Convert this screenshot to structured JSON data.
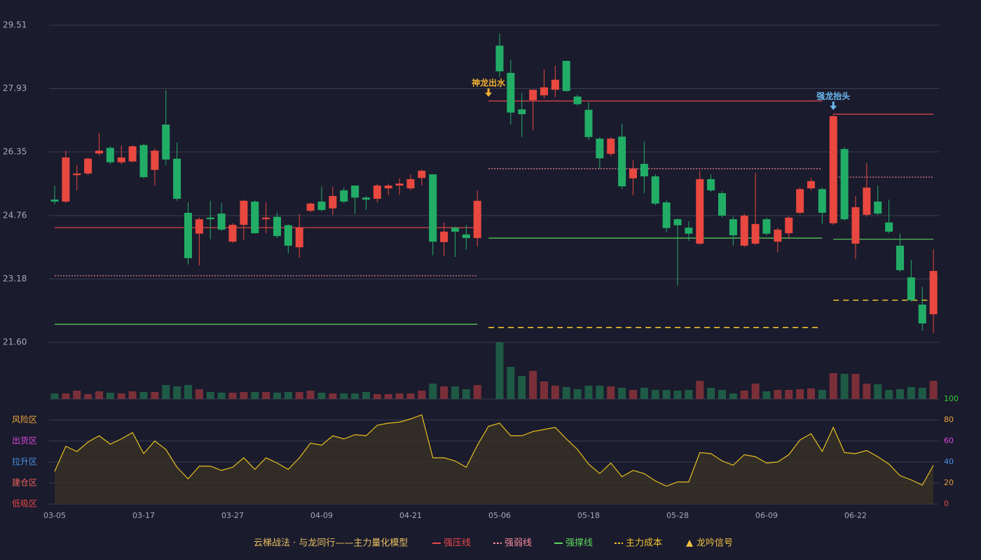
{
  "chart_data": {
    "type": "candlestick",
    "categories": [
      "03-05",
      null,
      null,
      null,
      null,
      null,
      null,
      null,
      "03-17",
      null,
      null,
      null,
      null,
      null,
      null,
      null,
      "03-27",
      null,
      null,
      null,
      null,
      null,
      null,
      null,
      "04-09",
      null,
      null,
      null,
      null,
      null,
      null,
      null,
      "04-21",
      null,
      null,
      null,
      null,
      null,
      null,
      null,
      "05-06",
      null,
      null,
      null,
      null,
      null,
      null,
      null,
      "05-18",
      null,
      null,
      null,
      null,
      null,
      null,
      null,
      "05-28",
      null,
      null,
      null,
      null,
      null,
      null,
      null,
      "06-09",
      null,
      null,
      null,
      null,
      null,
      null,
      null,
      "06-22",
      null,
      null,
      null,
      null,
      null,
      null,
      null
    ],
    "open": [
      25.16,
      25.11,
      25.77,
      25.81,
      26.31,
      26.45,
      26.09,
      26.11,
      26.52,
      25.9,
      27.03,
      26.18,
      24.83,
      24.31,
      24.71,
      24.81,
      24.11,
      24.53,
      25.11,
      24.67,
      24.73,
      24.52,
      23.97,
      24.88,
      25.11,
      24.94,
      25.39,
      25.51,
      25.21,
      25.18,
      25.44,
      25.51,
      25.44,
      25.7,
      25.79,
      24.1,
      24.46,
      24.29,
      24.2,
      null,
      29.0,
      28.32,
      27.41,
      27.64,
      27.76,
      27.9,
      28.62,
      27.73,
      27.4,
      26.68,
      26.3,
      26.73,
      25.69,
      26.05,
      25.74,
      25.09,
      24.67,
      24.46,
      24.06,
      25.67,
      25.32,
      24.67,
      24.01,
      24.06,
      24.67,
      24.11,
      24.32,
      24.83,
      25.44,
      25.42,
      24.57,
      26.42,
      24.06,
      24.78,
      25.11,
      24.59,
      24.01,
      23.22,
      22.54,
      22.3
    ],
    "high": [
      25.51,
      26.38,
      26.02,
      26.21,
      26.82,
      26.49,
      26.51,
      26.51,
      26.56,
      26.44,
      27.89,
      26.58,
      25.09,
      24.71,
      25.13,
      25.07,
      24.57,
      25.16,
      25.14,
      25.09,
      24.83,
      24.55,
      24.8,
      25.09,
      25.49,
      25.48,
      25.46,
      25.51,
      25.25,
      25.55,
      25.56,
      25.69,
      25.79,
      25.91,
      25.79,
      24.59,
      24.48,
      24.52,
      25.39,
      null,
      29.3,
      28.65,
      27.82,
      27.9,
      28.41,
      28.5,
      28.62,
      27.78,
      27.59,
      26.72,
      26.72,
      27.05,
      26.14,
      26.61,
      25.79,
      25.14,
      24.69,
      24.62,
      25.88,
      25.79,
      25.37,
      24.74,
      24.8,
      25.83,
      24.71,
      24.46,
      24.74,
      25.46,
      25.7,
      25.46,
      27.28,
      26.47,
      25.25,
      26.07,
      25.51,
      25.16,
      24.31,
      23.66,
      22.98,
      23.92
    ],
    "low": [
      25.04,
      25.07,
      25.39,
      25.77,
      26.26,
      26.04,
      26.04,
      26.09,
      25.69,
      25.51,
      26.02,
      25.13,
      23.54,
      23.52,
      24.17,
      24.38,
      24.08,
      24.15,
      24.31,
      24.32,
      24.2,
      23.82,
      23.71,
      24.85,
      24.87,
      24.78,
      25.07,
      24.8,
      24.9,
      25.09,
      25.27,
      25.28,
      25.39,
      25.51,
      23.77,
      23.75,
      23.73,
      23.91,
      23.99,
      null,
      28.22,
      27.03,
      26.72,
      26.89,
      27.68,
      27.71,
      27.85,
      27.5,
      26.65,
      25.93,
      26.24,
      25.42,
      25.27,
      25.32,
      25.02,
      24.34,
      23.01,
      24.13,
      24.03,
      25.35,
      24.71,
      24.01,
      23.97,
      24.03,
      24.27,
      23.84,
      24.18,
      24.8,
      25.39,
      24.55,
      24.53,
      24.64,
      23.68,
      24.73,
      24.78,
      24.32,
      23.36,
      22.61,
      21.88,
      21.83
    ],
    "close": [
      25.11,
      26.21,
      25.81,
      26.18,
      26.38,
      26.09,
      26.21,
      26.49,
      25.72,
      26.38,
      26.16,
      25.18,
      23.7,
      24.67,
      24.67,
      24.41,
      24.53,
      25.13,
      24.32,
      24.71,
      24.25,
      24.01,
      24.46,
      25.06,
      24.9,
      25.25,
      25.11,
      25.21,
      25.16,
      25.51,
      25.51,
      25.56,
      25.67,
      25.88,
      24.11,
      24.36,
      24.36,
      24.2,
      25.13,
      null,
      28.36,
      27.33,
      27.29,
      27.9,
      27.96,
      28.15,
      27.87,
      27.54,
      26.72,
      26.19,
      26.68,
      25.49,
      25.93,
      25.74,
      25.06,
      24.45,
      24.52,
      24.31,
      25.67,
      25.39,
      24.76,
      24.27,
      24.76,
      24.55,
      24.31,
      24.41,
      24.71,
      25.42,
      25.62,
      24.83,
      27.24,
      24.67,
      24.97,
      25.46,
      24.81,
      24.36,
      23.4,
      22.65,
      22.07,
      23.38
    ],
    "up_color": "#e8483f",
    "down_color": "#22ad66",
    "ylim": [
      21.6,
      29.51
    ],
    "yticks": [
      {
        "value": 21.6,
        "label": "21.60"
      },
      23.18,
      24.76,
      26.35,
      27.93,
      29.51
    ],
    "grid": true,
    "series": [
      {
        "name": "强压线",
        "color": "#e8484a",
        "dash": "none",
        "values": [
          24.46,
          24.46,
          24.46,
          24.46,
          24.46,
          24.46,
          24.46,
          24.46,
          24.46,
          24.46,
          24.46,
          24.46,
          24.46,
          24.46,
          24.46,
          24.46,
          24.46,
          24.46,
          24.46,
          24.46,
          24.46,
          24.46,
          24.46,
          24.46,
          24.46,
          24.46,
          24.46,
          24.46,
          24.46,
          24.46,
          24.46,
          24.46,
          24.46,
          24.46,
          24.46,
          24.46,
          24.46,
          24.46,
          24.46,
          27.62,
          27.62,
          27.62,
          27.62,
          27.62,
          27.62,
          27.62,
          27.62,
          27.62,
          27.62,
          27.62,
          27.62,
          27.62,
          27.62,
          27.62,
          27.62,
          27.62,
          27.62,
          27.62,
          27.62,
          27.62,
          27.62,
          27.62,
          27.62,
          27.62,
          27.62,
          27.62,
          27.62,
          27.62,
          27.62,
          27.62,
          27.29,
          27.29,
          27.29,
          27.29,
          27.29,
          27.29,
          27.29,
          27.29,
          27.29,
          27.29
        ]
      },
      {
        "name": "强弱线",
        "color": "#f58a9a",
        "dash": "2,2",
        "values": [
          23.26,
          23.26,
          23.26,
          23.26,
          23.26,
          23.26,
          23.26,
          23.26,
          23.26,
          23.26,
          23.26,
          23.26,
          23.26,
          23.26,
          23.26,
          23.26,
          23.26,
          23.26,
          23.26,
          23.26,
          23.26,
          23.26,
          23.26,
          23.26,
          23.26,
          23.26,
          23.26,
          23.26,
          23.26,
          23.26,
          23.26,
          23.26,
          23.26,
          23.26,
          23.26,
          23.26,
          23.26,
          23.26,
          23.26,
          25.93,
          25.93,
          25.93,
          25.93,
          25.93,
          25.93,
          25.93,
          25.93,
          25.93,
          25.93,
          25.93,
          25.93,
          25.93,
          25.93,
          25.93,
          25.93,
          25.93,
          25.93,
          25.93,
          25.93,
          25.93,
          25.93,
          25.93,
          25.93,
          25.93,
          25.93,
          25.93,
          25.93,
          25.93,
          25.93,
          25.93,
          25.72,
          25.72,
          25.72,
          25.72,
          25.72,
          25.72,
          25.72,
          25.72,
          25.72,
          25.72
        ]
      },
      {
        "name": "强撑线",
        "color": "#5cd65c",
        "dash": "none",
        "values": [
          22.05,
          22.05,
          22.05,
          22.05,
          22.05,
          22.05,
          22.05,
          22.05,
          22.05,
          22.05,
          22.05,
          22.05,
          22.05,
          22.05,
          22.05,
          22.05,
          22.05,
          22.05,
          22.05,
          22.05,
          22.05,
          22.05,
          22.05,
          22.05,
          22.05,
          22.05,
          22.05,
          22.05,
          22.05,
          22.05,
          22.05,
          22.05,
          22.05,
          22.05,
          22.05,
          22.05,
          22.05,
          22.05,
          22.05,
          24.2,
          24.2,
          24.2,
          24.2,
          24.2,
          24.2,
          24.2,
          24.2,
          24.2,
          24.2,
          24.2,
          24.2,
          24.2,
          24.2,
          24.2,
          24.2,
          24.2,
          24.2,
          24.2,
          24.2,
          24.2,
          24.2,
          24.2,
          24.2,
          24.2,
          24.2,
          24.2,
          24.2,
          24.2,
          24.2,
          24.2,
          24.17,
          24.17,
          24.17,
          24.17,
          24.17,
          24.17,
          24.17,
          24.17,
          24.17,
          24.17
        ]
      },
      {
        "name": "主力成本",
        "color": "#f2c230",
        "dash": "8,6",
        "values": [
          null,
          null,
          null,
          null,
          null,
          null,
          null,
          null,
          null,
          null,
          null,
          null,
          null,
          null,
          null,
          null,
          null,
          null,
          null,
          null,
          null,
          null,
          null,
          null,
          null,
          null,
          null,
          null,
          null,
          null,
          null,
          null,
          null,
          null,
          null,
          null,
          null,
          null,
          null,
          21.97,
          21.97,
          21.97,
          21.97,
          21.97,
          21.97,
          21.97,
          21.97,
          21.97,
          21.97,
          21.97,
          21.97,
          21.97,
          21.97,
          21.97,
          21.97,
          21.97,
          21.97,
          21.97,
          21.97,
          21.97,
          21.97,
          21.97,
          21.97,
          21.97,
          21.97,
          21.97,
          21.97,
          21.97,
          21.97,
          21.97,
          22.65,
          22.65,
          22.65,
          22.65,
          22.65,
          22.65,
          22.65,
          22.65,
          22.65,
          22.65
        ]
      }
    ],
    "annotations": [
      {
        "text": "神龙出水",
        "index": 39,
        "color": "#f0b030"
      },
      {
        "text": "强龙抬头",
        "index": 70,
        "color": "#6cb8f0"
      }
    ],
    "volume": {
      "values": [
        8,
        8,
        12,
        7,
        11,
        9,
        8,
        11,
        10,
        10,
        20,
        18,
        20,
        14,
        10,
        9,
        9,
        10,
        10,
        10,
        9,
        10,
        10,
        12,
        9,
        8,
        8,
        8,
        10,
        7,
        7,
        8,
        8,
        12,
        22,
        18,
        18,
        14,
        20,
        null,
        81,
        46,
        33,
        40,
        25,
        19,
        17,
        14,
        19,
        19,
        18,
        16,
        13,
        16,
        13,
        13,
        12,
        13,
        26,
        16,
        13,
        8,
        12,
        22,
        11,
        13,
        13,
        14,
        15,
        13,
        37,
        36,
        36,
        22,
        21,
        13,
        14,
        17,
        16,
        26
      ],
      "up_color": "#7a2f38",
      "down_color": "#1e5a45"
    },
    "indicator": {
      "values": [
        31,
        55,
        50,
        59,
        65,
        57,
        62,
        68,
        48,
        60,
        52,
        35,
        24,
        36,
        36,
        32,
        35,
        44,
        33,
        44,
        39,
        33,
        44,
        58,
        56,
        65,
        62,
        66,
        65,
        75,
        77,
        78,
        81,
        85,
        44,
        44,
        41,
        35,
        56,
        74,
        77,
        65,
        65,
        69,
        71,
        73,
        62,
        52,
        38,
        29,
        39,
        26,
        32,
        29,
        22,
        17,
        21,
        21,
        49,
        48,
        41,
        37,
        47,
        45,
        39,
        40,
        47,
        61,
        67,
        50,
        73,
        49,
        48,
        51,
        45,
        38,
        27,
        23,
        18,
        37
      ],
      "color": "#e8c020",
      "ylim": [
        0,
        100
      ],
      "yticks": [
        0,
        20,
        40,
        60,
        80,
        100
      ],
      "ytick_colors": [
        "#e84848",
        "#e89838",
        "#4a90e2",
        "#d848d8",
        "#e8a33a",
        "#33cc33"
      ],
      "zones": [
        {
          "label": "低吸区",
          "value": 0,
          "color": "#e84848"
        },
        {
          "label": "建仓区",
          "value": 20,
          "color": "#e8605a"
        },
        {
          "label": "拉升区",
          "value": 40,
          "color": "#4a90e2"
        },
        {
          "label": "出货区",
          "value": 60,
          "color": "#d848d8"
        },
        {
          "label": "风险区",
          "value": 80,
          "color": "#e8a33a"
        }
      ]
    },
    "legend_title": "云梯战法 · 与龙同行——主力量化模型",
    "legend_title_color": "#e8c060",
    "signal_legend": {
      "label": "龙吟信号",
      "color": "#f0c040"
    }
  }
}
